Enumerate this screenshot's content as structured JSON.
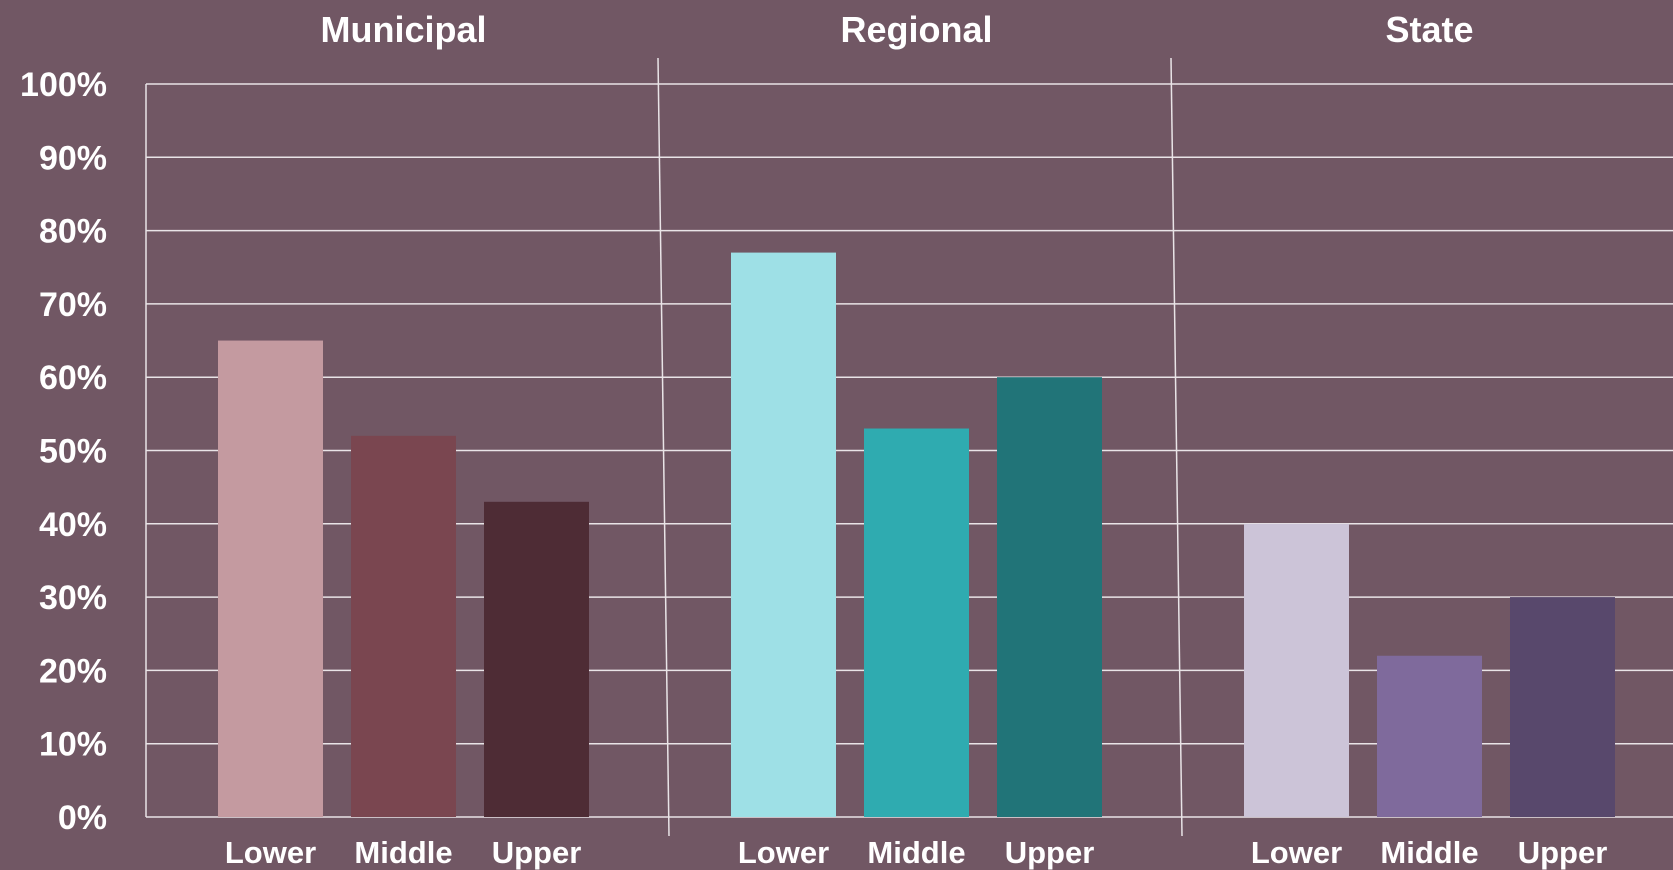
{
  "colors": {
    "background": "#715764",
    "gridline": "#e9e4e7",
    "text": "#ffffff"
  },
  "chart_data": {
    "type": "bar",
    "ylim": [
      0,
      100
    ],
    "y_ticks": [
      "0%",
      "10%",
      "20%",
      "30%",
      "40%",
      "50%",
      "60%",
      "70%",
      "80%",
      "90%",
      "100%"
    ],
    "grid": true,
    "legend": "none",
    "panels": [
      {
        "title": "Municipal",
        "categories": [
          "Lower",
          "Middle",
          "Upper"
        ],
        "values": [
          65,
          52,
          43
        ],
        "colors": [
          "#c49aa0",
          "#7a4650",
          "#4e2c35"
        ]
      },
      {
        "title": "Regional",
        "categories": [
          "Lower",
          "Middle",
          "Upper"
        ],
        "values": [
          77,
          53,
          60
        ],
        "colors": [
          "#9ee0e6",
          "#2fabb0",
          "#217478"
        ]
      },
      {
        "title": "State",
        "categories": [
          "Lower",
          "Middle",
          "Upper"
        ],
        "values": [
          40,
          22,
          30
        ],
        "colors": [
          "#ccc4d8",
          "#7f6a9c",
          "#58486c"
        ]
      }
    ]
  }
}
